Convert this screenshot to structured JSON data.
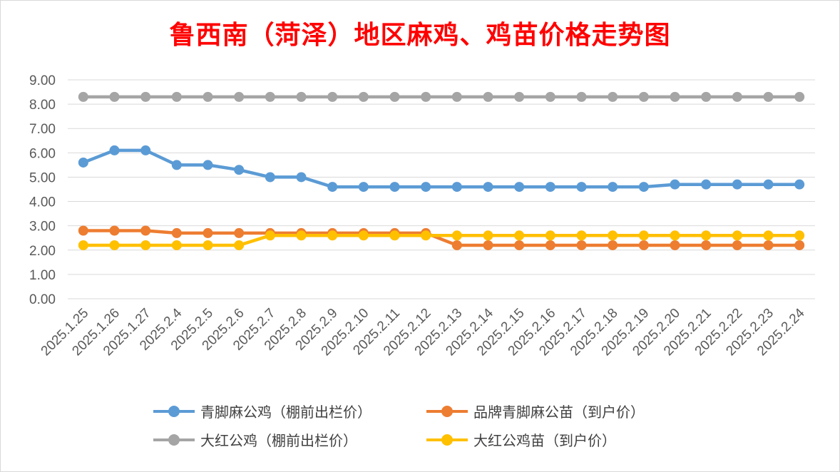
{
  "chart_data": {
    "type": "line",
    "title": "鲁西南（菏泽）地区麻鸡、鸡苗价格走势图",
    "categories": [
      "2025.1.25",
      "2025.1.26",
      "2025.1.27",
      "2025.2.4",
      "2025.2.5",
      "2025.2.6",
      "2025.2.7",
      "2025.2.8",
      "2025.2.9",
      "2025.2.10",
      "2025.2.11",
      "2025.2.12",
      "2025.2.13",
      "2025.2.14",
      "2025.2.15",
      "2025.2.16",
      "2025.2.17",
      "2025.2.18",
      "2025.2.19",
      "2025.2.20",
      "2025.2.21",
      "2025.2.22",
      "2025.2.23",
      "2025.2.24"
    ],
    "ylim": [
      0,
      9
    ],
    "yticks": [
      "0.00",
      "1.00",
      "2.00",
      "3.00",
      "4.00",
      "5.00",
      "6.00",
      "7.00",
      "8.00",
      "9.00"
    ],
    "grid": true,
    "legend_position": "bottom",
    "series": [
      {
        "name": "青脚麻公鸡（棚前出栏价）",
        "color": "#5b9bd5",
        "values": [
          5.6,
          6.1,
          6.1,
          5.5,
          5.5,
          5.3,
          5.0,
          5.0,
          4.6,
          4.6,
          4.6,
          4.6,
          4.6,
          4.6,
          4.6,
          4.6,
          4.6,
          4.6,
          4.6,
          4.7,
          4.7,
          4.7,
          4.7,
          4.7
        ]
      },
      {
        "name": "品牌青脚麻公苗（到户价）",
        "color": "#ed7d31",
        "values": [
          2.8,
          2.8,
          2.8,
          2.7,
          2.7,
          2.7,
          2.7,
          2.7,
          2.7,
          2.7,
          2.7,
          2.7,
          2.2,
          2.2,
          2.2,
          2.2,
          2.2,
          2.2,
          2.2,
          2.2,
          2.2,
          2.2,
          2.2,
          2.2
        ]
      },
      {
        "name": "大红公鸡（棚前出栏价）",
        "color": "#a5a5a5",
        "values": [
          8.3,
          8.3,
          8.3,
          8.3,
          8.3,
          8.3,
          8.3,
          8.3,
          8.3,
          8.3,
          8.3,
          8.3,
          8.3,
          8.3,
          8.3,
          8.3,
          8.3,
          8.3,
          8.3,
          8.3,
          8.3,
          8.3,
          8.3,
          8.3
        ]
      },
      {
        "name": "大红公鸡苗（到户价）",
        "color": "#ffc000",
        "values": [
          2.2,
          2.2,
          2.2,
          2.2,
          2.2,
          2.2,
          2.6,
          2.6,
          2.6,
          2.6,
          2.6,
          2.6,
          2.6,
          2.6,
          2.6,
          2.6,
          2.6,
          2.6,
          2.6,
          2.6,
          2.6,
          2.6,
          2.6,
          2.6
        ]
      }
    ]
  }
}
